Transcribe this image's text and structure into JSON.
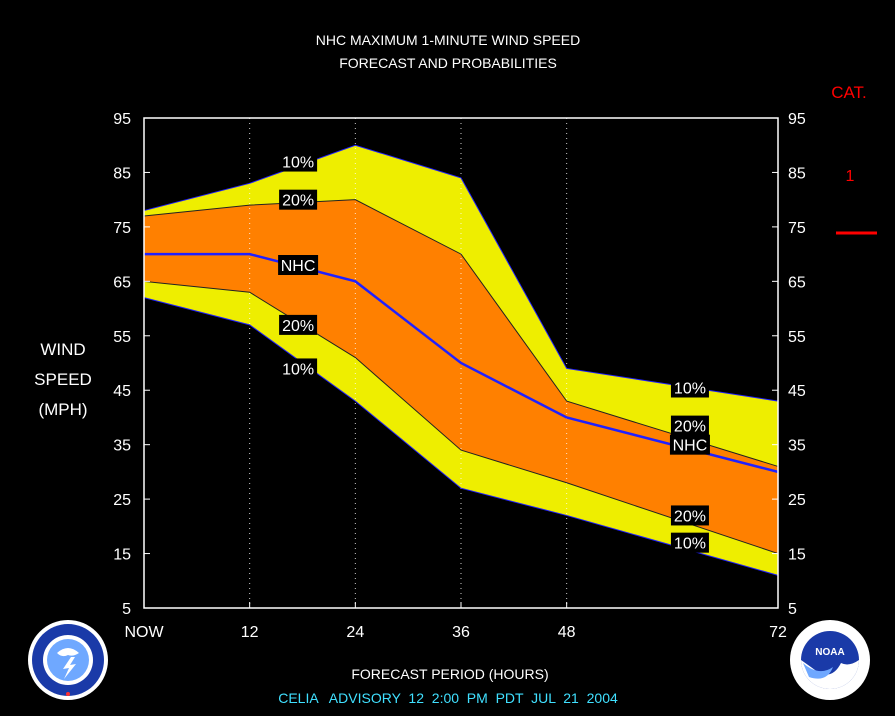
{
  "chart_data": {
    "type": "area",
    "title": "NHC MAXIMUM 1-MINUTE WIND SPEED",
    "subtitle": "FORECAST AND PROBABILITIES",
    "xlabel": "FORECAST PERIOD (HOURS)",
    "ylabel": [
      "WIND",
      "SPEED",
      "(MPH)"
    ],
    "xlim": [
      0,
      72
    ],
    "ylim": [
      5,
      95
    ],
    "x_ticks": [
      {
        "value": 0,
        "label": "NOW"
      },
      {
        "value": 12,
        "label": "12"
      },
      {
        "value": 24,
        "label": "24"
      },
      {
        "value": 36,
        "label": "36"
      },
      {
        "value": 48,
        "label": "48"
      },
      {
        "value": 72,
        "label": "72"
      }
    ],
    "y_ticks": [
      5,
      15,
      25,
      35,
      45,
      55,
      65,
      75,
      85,
      95
    ],
    "x": [
      0,
      12,
      24,
      36,
      48,
      72
    ],
    "series": [
      {
        "name": "10%",
        "role": "upper10",
        "values": [
          78,
          83,
          90,
          84,
          49,
          43
        ]
      },
      {
        "name": "20%",
        "role": "upper20",
        "values": [
          77,
          79,
          80,
          70,
          43,
          31
        ]
      },
      {
        "name": "NHC",
        "role": "nhc",
        "values": [
          70,
          70,
          65,
          50,
          40,
          30
        ]
      },
      {
        "name": "20%",
        "role": "lower20",
        "values": [
          65,
          63,
          51,
          34,
          28,
          15
        ]
      },
      {
        "name": "10%",
        "role": "lower10",
        "values": [
          62,
          57,
          43,
          27,
          22,
          11
        ]
      }
    ],
    "band_labels": [
      {
        "text": "10%",
        "x": 17.5,
        "y": 87
      },
      {
        "text": "20%",
        "x": 17.5,
        "y": 80
      },
      {
        "text": "NHC",
        "x": 17.5,
        "y": 68
      },
      {
        "text": "20%",
        "x": 17.5,
        "y": 57
      },
      {
        "text": "10%",
        "x": 17.5,
        "y": 49
      },
      {
        "text": "10%",
        "x": 62,
        "y": 45.5
      },
      {
        "text": "20%",
        "x": 62,
        "y": 38.5
      },
      {
        "text": "NHC",
        "x": 62,
        "y": 35
      },
      {
        "text": "20%",
        "x": 62,
        "y": 22
      },
      {
        "text": "10%",
        "x": 62,
        "y": 17
      }
    ],
    "category_panel": {
      "title": "CAT.",
      "label": "1",
      "threshold_mph": 74
    },
    "colors": {
      "background": "#000000",
      "outer_band": "#eeee00",
      "inner_band": "#ff8000",
      "nhc_line": "#2020ff",
      "category": "#ff0000",
      "advisory": "#40e0ff"
    },
    "advisory": "CELIA   ADVISORY  12  2:00  PM  PDT  JUL  21  2004",
    "grid": "vertical dotted"
  },
  "logos": {
    "left": "nws-logo",
    "right": "noaa-logo"
  }
}
